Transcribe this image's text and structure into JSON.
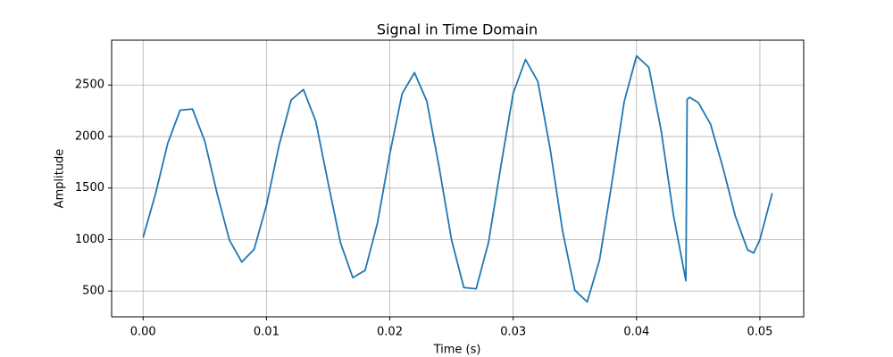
{
  "chart_data": {
    "type": "line",
    "title": "Signal in Time Domain",
    "x_label": "Time (s)",
    "y_label": "Amplitude",
    "x": [
      0,
      0.001,
      0.002,
      0.003,
      0.004,
      0.005,
      0.006,
      0.007,
      0.008,
      0.009,
      0.01,
      0.011,
      0.012,
      0.013,
      0.014,
      0.015,
      0.016,
      0.017,
      0.018,
      0.019,
      0.02,
      0.021,
      0.022,
      0.023,
      0.024,
      0.025,
      0.026,
      0.027,
      0.028,
      0.029,
      0.03,
      0.031,
      0.032,
      0.033,
      0.034,
      0.035,
      0.036,
      0.037,
      0.038,
      0.039,
      0.04,
      0.041,
      0.042,
      0.043,
      0.044,
      0.0441,
      0.0443,
      0.045,
      0.046,
      0.047,
      0.048,
      0.049,
      0.0495,
      0.05,
      0.051
    ],
    "values": [
      1020,
      1440,
      1934,
      2255,
      2267,
      1956,
      1448,
      994,
      782,
      905,
      1332,
      1903,
      2354,
      2456,
      2147,
      1550,
      970,
      630,
      701,
      1161,
      1830,
      2416,
      2620,
      2343,
      1701,
      999,
      535,
      522,
      972,
      1710,
      2420,
      2747,
      2534,
      1878,
      1087,
      507,
      395,
      801,
      1550,
      2339,
      2782,
      2671,
      2055,
      1231,
      600,
      2360,
      2380,
      2330,
      2120,
      1700,
      1230,
      900,
      870,
      1000,
      1450
    ],
    "color": "#1f77b4",
    "xlim": [
      -0.00255,
      0.05355
    ],
    "xticks": [
      {
        "value": 0,
        "label": "0.00"
      },
      {
        "value": 0.01,
        "label": "0.01"
      },
      {
        "value": 0.02,
        "label": "0.02"
      },
      {
        "value": 0.03,
        "label": "0.03"
      },
      {
        "value": 0.04,
        "label": "0.04"
      },
      {
        "value": 0.05,
        "label": "0.05"
      }
    ],
    "ylim": [
      250,
      2935
    ],
    "yticks": [
      500,
      1000,
      1500,
      2000,
      2500
    ],
    "grid": true
  }
}
